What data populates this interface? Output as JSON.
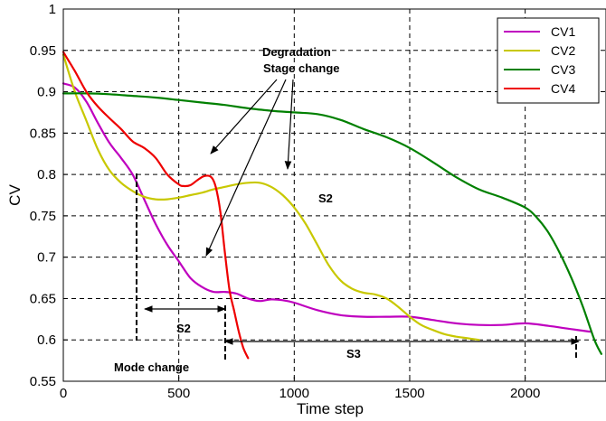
{
  "chart_data": {
    "type": "line",
    "title": "",
    "xlabel": "Time step",
    "ylabel": "CV",
    "xlim": [
      0,
      2350
    ],
    "ylim": [
      0.55,
      1.0
    ],
    "grid": true,
    "legend_position": "top-right",
    "x_ticks": [
      0,
      500,
      1000,
      1500,
      2000
    ],
    "x_tick_labels": [
      "0",
      "500",
      "1000",
      "1500",
      "2000"
    ],
    "y_ticks": [
      0.55,
      0.6,
      0.65,
      0.7,
      0.75,
      0.8,
      0.85,
      0.9,
      0.95,
      1.0
    ],
    "y_tick_labels": [
      "0.55",
      "0.6",
      "0.65",
      "0.7",
      "0.75",
      "0.8",
      "0.85",
      "0.9",
      "0.95",
      "1"
    ],
    "series": [
      {
        "name": "CV1",
        "color": "#bf00bf",
        "x": [
          0,
          50,
          100,
          150,
          200,
          250,
          300,
          350,
          400,
          450,
          500,
          550,
          600,
          650,
          700,
          750,
          800,
          850,
          900,
          950,
          1000,
          1100,
          1200,
          1300,
          1400,
          1500,
          1600,
          1700,
          1800,
          1900,
          2000,
          2100,
          2200,
          2280
        ],
        "y": [
          0.91,
          0.905,
          0.888,
          0.862,
          0.838,
          0.82,
          0.8,
          0.77,
          0.74,
          0.715,
          0.695,
          0.675,
          0.664,
          0.658,
          0.658,
          0.656,
          0.65,
          0.647,
          0.649,
          0.648,
          0.645,
          0.636,
          0.63,
          0.628,
          0.628,
          0.628,
          0.624,
          0.62,
          0.618,
          0.618,
          0.62,
          0.617,
          0.613,
          0.61
        ]
      },
      {
        "name": "CV2",
        "color": "#c8c800",
        "x": [
          0,
          50,
          100,
          150,
          200,
          250,
          300,
          350,
          400,
          450,
          500,
          550,
          600,
          650,
          700,
          750,
          800,
          850,
          900,
          950,
          1000,
          1050,
          1100,
          1150,
          1200,
          1250,
          1300,
          1350,
          1400,
          1450,
          1500,
          1550,
          1600,
          1650,
          1700,
          1750,
          1800
        ],
        "y": [
          0.945,
          0.9,
          0.865,
          0.83,
          0.805,
          0.79,
          0.78,
          0.773,
          0.77,
          0.77,
          0.772,
          0.775,
          0.778,
          0.782,
          0.785,
          0.788,
          0.79,
          0.79,
          0.785,
          0.775,
          0.76,
          0.74,
          0.715,
          0.69,
          0.672,
          0.662,
          0.657,
          0.655,
          0.65,
          0.64,
          0.628,
          0.618,
          0.612,
          0.607,
          0.604,
          0.602,
          0.6
        ]
      },
      {
        "name": "CV3",
        "color": "#008000",
        "x": [
          0,
          100,
          200,
          300,
          400,
          500,
          600,
          700,
          800,
          900,
          1000,
          1100,
          1200,
          1300,
          1400,
          1500,
          1600,
          1700,
          1800,
          1900,
          2000,
          2050,
          2100,
          2150,
          2200,
          2250,
          2300,
          2330
        ],
        "y": [
          0.898,
          0.898,
          0.897,
          0.895,
          0.893,
          0.89,
          0.887,
          0.884,
          0.88,
          0.877,
          0.875,
          0.873,
          0.866,
          0.855,
          0.845,
          0.832,
          0.815,
          0.797,
          0.782,
          0.772,
          0.76,
          0.748,
          0.73,
          0.705,
          0.675,
          0.64,
          0.6,
          0.583
        ]
      },
      {
        "name": "CV4",
        "color": "#ee0000",
        "x": [
          0,
          50,
          100,
          150,
          200,
          250,
          300,
          350,
          400,
          450,
          500,
          520,
          550,
          580,
          610,
          640,
          660,
          680,
          700,
          720,
          740,
          760,
          780,
          800
        ],
        "y": [
          0.948,
          0.925,
          0.9,
          0.882,
          0.868,
          0.855,
          0.84,
          0.832,
          0.82,
          0.8,
          0.788,
          0.786,
          0.787,
          0.793,
          0.798,
          0.797,
          0.785,
          0.755,
          0.705,
          0.66,
          0.635,
          0.61,
          0.59,
          0.578
        ]
      }
    ],
    "annotations": {
      "degradation": "Degradation",
      "stage_change": "Stage change",
      "s2_upper": "S2",
      "s2_lower": "S2",
      "s3": "S3",
      "mode_change": "Mode change"
    }
  }
}
